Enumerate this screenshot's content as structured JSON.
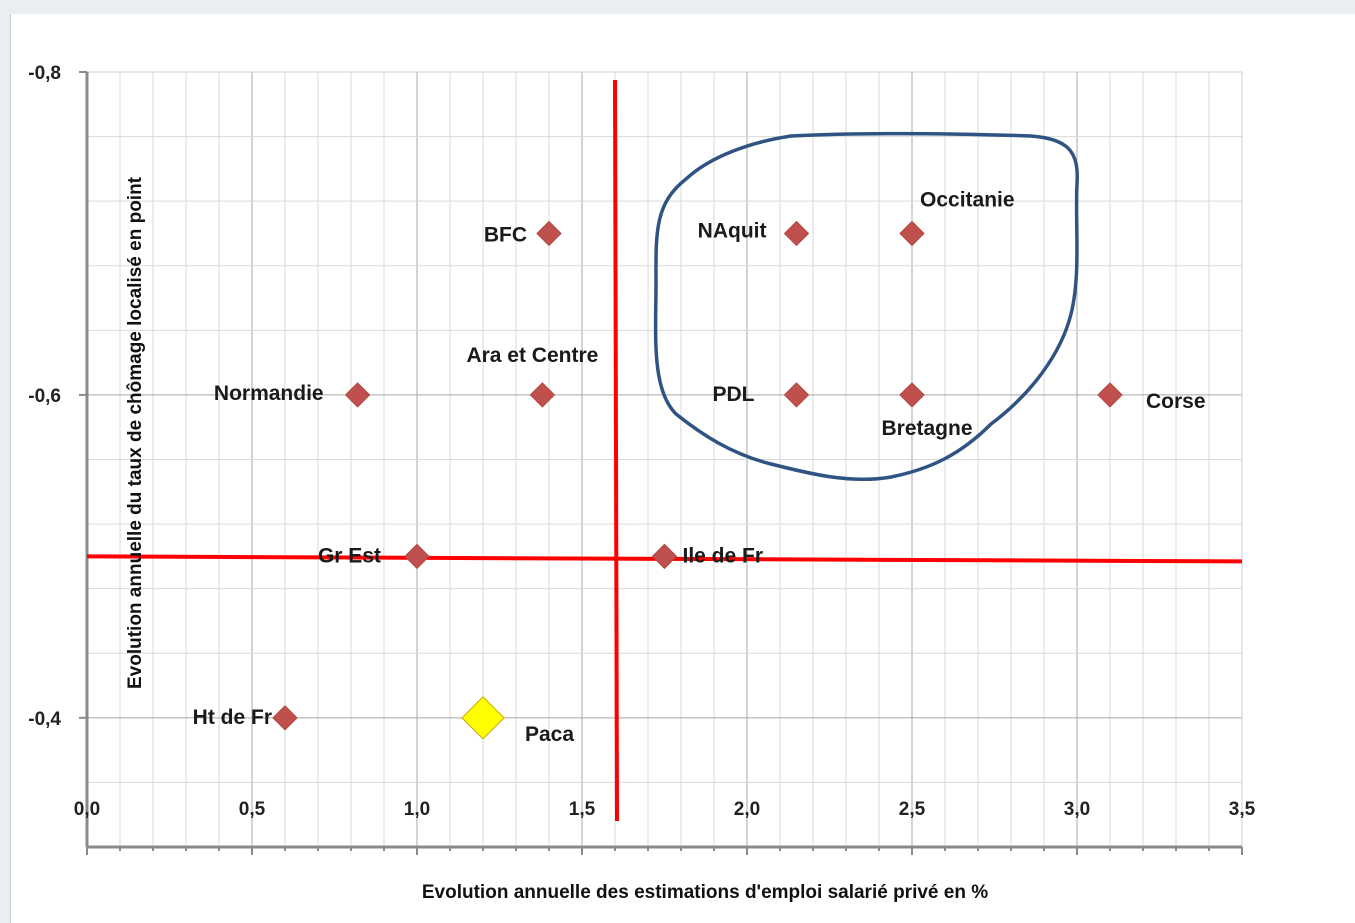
{
  "chart_data": {
    "type": "scatter",
    "xlabel": "Evolution annuelle des estimations d'emploi salarié privé en %",
    "ylabel": "Evolution annuelle du taux de chômage localisé en point",
    "xlim": [
      0.0,
      3.5
    ],
    "ylim": [
      -0.32,
      -0.8
    ],
    "x_ticks": [
      "0,0",
      "0,5",
      "1,0",
      "1,5",
      "2,0",
      "2,5",
      "3,0",
      "3,5"
    ],
    "y_ticks": [
      "-0,8",
      "-0,6",
      "-0,4"
    ],
    "grid": true,
    "points": [
      {
        "label": "BFC",
        "x": 1.4,
        "y": -0.7,
        "color": "#c0504d"
      },
      {
        "label": "NAquit",
        "x": 2.15,
        "y": -0.7,
        "color": "#c0504d"
      },
      {
        "label": "Occitanie",
        "x": 2.5,
        "y": -0.7,
        "color": "#c0504d"
      },
      {
        "label": "Normandie",
        "x": 0.82,
        "y": -0.6,
        "color": "#c0504d"
      },
      {
        "label": "Ara et Centre",
        "x": 1.38,
        "y": -0.6,
        "color": "#c0504d"
      },
      {
        "label": "PDL",
        "x": 2.15,
        "y": -0.6,
        "color": "#c0504d"
      },
      {
        "label": "Bretagne",
        "x": 2.5,
        "y": -0.6,
        "color": "#c0504d"
      },
      {
        "label": "Corse",
        "x": 3.1,
        "y": -0.6,
        "color": "#c0504d"
      },
      {
        "label": "Gr Est",
        "x": 1.0,
        "y": -0.5,
        "color": "#c0504d"
      },
      {
        "label": "Ile de Fr",
        "x": 1.75,
        "y": -0.5,
        "color": "#c0504d"
      },
      {
        "label": "Ht de Fr",
        "x": 0.6,
        "y": -0.4,
        "color": "#c0504d"
      },
      {
        "label": "Paca",
        "x": 1.2,
        "y": -0.4,
        "color": "#ffff00",
        "highlight": true
      }
    ],
    "reference_lines": {
      "vertical_x": 1.6,
      "horizontal_y": -0.5,
      "color": "#ff0000"
    },
    "annotation_outline_color": "#2f5383"
  }
}
